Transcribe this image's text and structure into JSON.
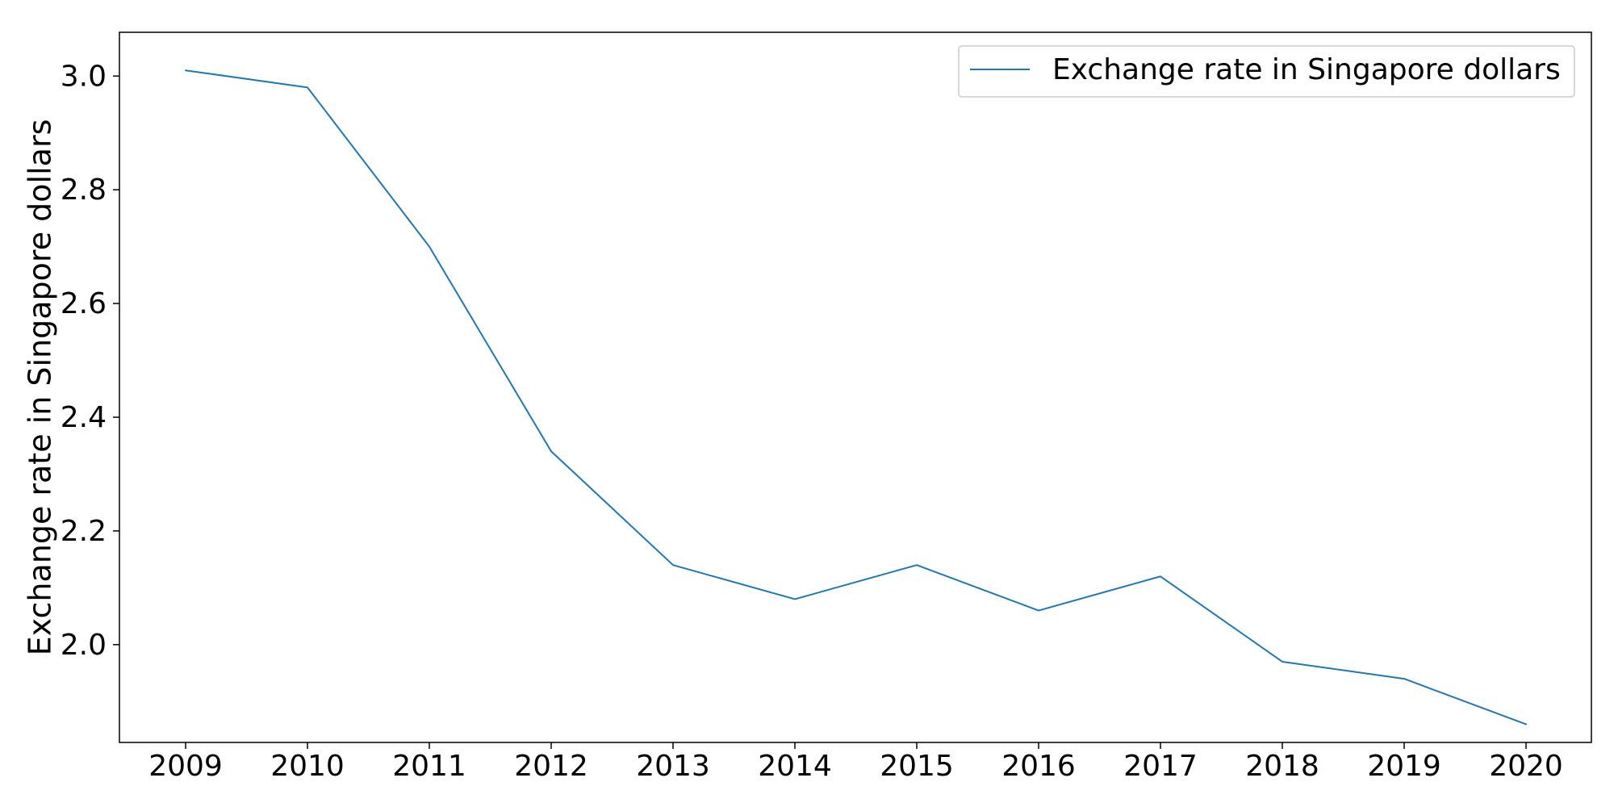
{
  "chart_data": {
    "type": "line",
    "title": "",
    "xlabel": "",
    "ylabel": "Exchange rate in Singapore dollars",
    "x": [
      "2009",
      "2010",
      "2011",
      "2012",
      "2013",
      "2014",
      "2015",
      "2016",
      "2017",
      "2018",
      "2019",
      "2020"
    ],
    "series": [
      {
        "name": "Exchange rate in Singapore dollars",
        "values": [
          3.01,
          2.98,
          2.7,
          2.34,
          2.14,
          2.08,
          2.14,
          2.06,
          2.12,
          1.97,
          1.94,
          1.86
        ],
        "color": "#1f77b4"
      }
    ],
    "ylim": [
      1.828,
      3.077
    ],
    "yticks": [
      "2.0",
      "2.2",
      "2.4",
      "2.6",
      "2.8",
      "3.0"
    ],
    "grid": false,
    "legend": "top-right"
  }
}
